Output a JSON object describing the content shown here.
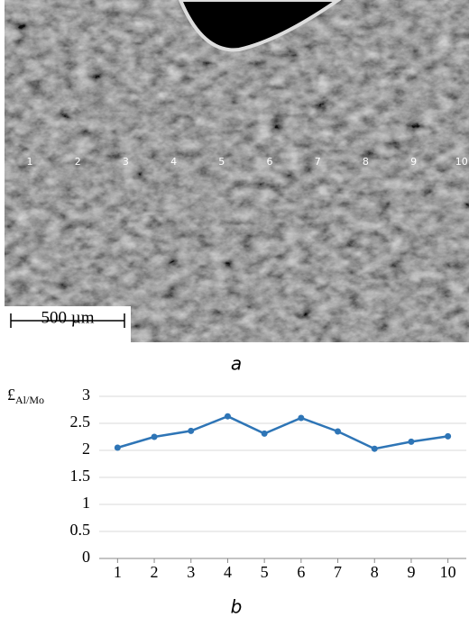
{
  "image": {
    "point_labels": [
      "1",
      "2",
      "3",
      "4",
      "5",
      "6",
      "7",
      "8",
      "9",
      "10"
    ],
    "scale_bar": "500 µm",
    "caption": "a"
  },
  "chart_data": {
    "type": "line",
    "y_label": "£",
    "y_label_sub": "Al/Mo",
    "x": [
      1,
      2,
      3,
      4,
      5,
      6,
      7,
      8,
      9,
      10
    ],
    "series": [
      {
        "color": "#2e75b6",
        "values": [
          2.05,
          2.25,
          2.36,
          2.63,
          2.31,
          2.6,
          2.35,
          2.03,
          2.16,
          2.26
        ]
      }
    ],
    "xlim": [
      0.5,
      10.5
    ],
    "xticks": [
      1,
      2,
      3,
      4,
      5,
      6,
      7,
      8,
      9,
      10
    ],
    "ylim": [
      0,
      3
    ],
    "yticks": [
      0,
      0.5,
      1,
      1.5,
      2,
      2.5,
      3
    ],
    "grid": true,
    "caption": "b"
  }
}
